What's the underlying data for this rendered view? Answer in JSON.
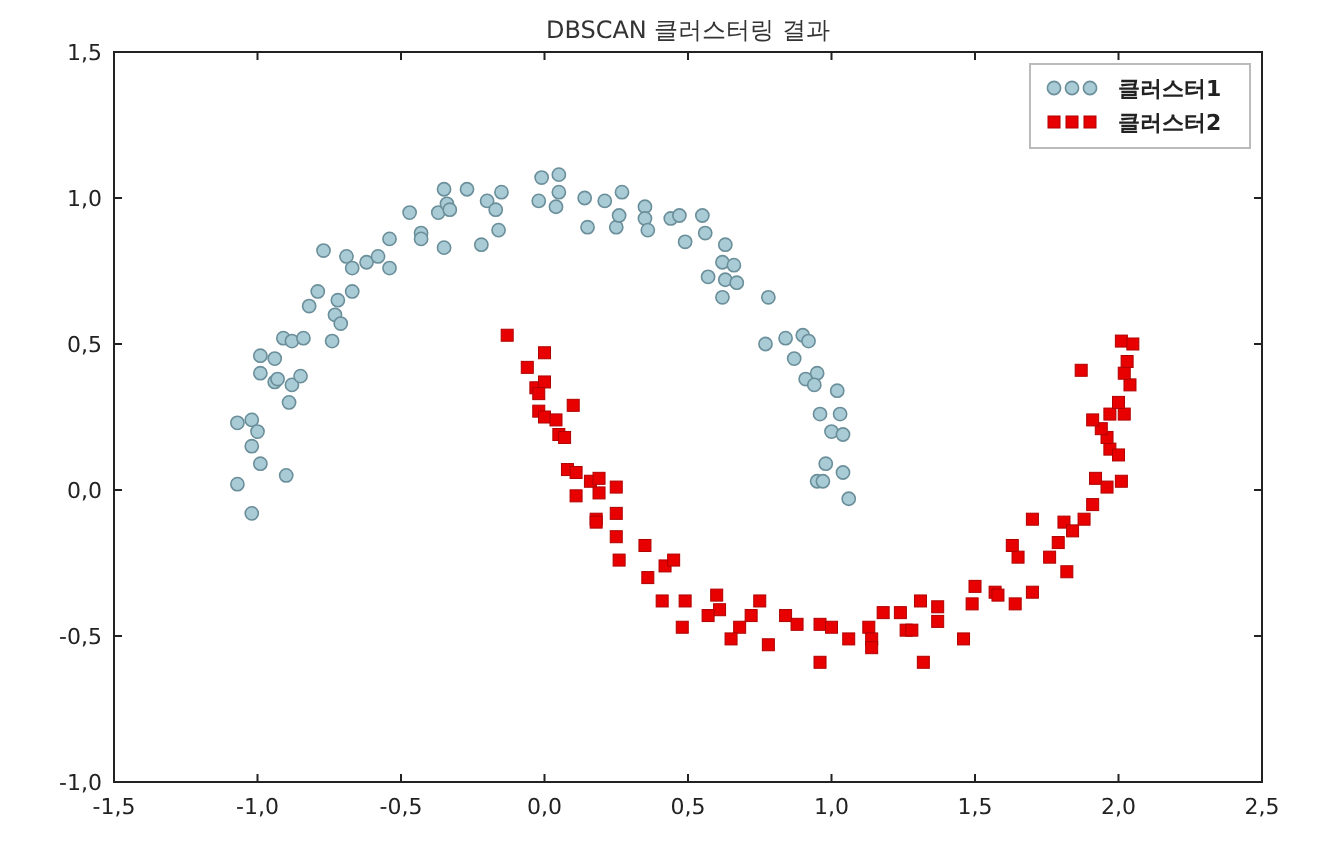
{
  "chart_data": {
    "type": "scatter",
    "title": "DBSCAN 클러스터링 결과",
    "xlim": [
      -1.5,
      2.5
    ],
    "ylim": [
      -1.0,
      1.5
    ],
    "xticks": [
      {
        "value": -1.5,
        "label": "-1,5"
      },
      {
        "value": -1.0,
        "label": "-1,0"
      },
      {
        "value": -0.5,
        "label": "-0,5"
      },
      {
        "value": 0.0,
        "label": "0,0"
      },
      {
        "value": 0.5,
        "label": "0,5"
      },
      {
        "value": 1.0,
        "label": "1,0"
      },
      {
        "value": 1.5,
        "label": "1,5"
      },
      {
        "value": 2.0,
        "label": "2,0"
      },
      {
        "value": 2.5,
        "label": "2,5"
      }
    ],
    "yticks": [
      {
        "value": -1.0,
        "label": "-1,0"
      },
      {
        "value": -0.5,
        "label": "-0,5"
      },
      {
        "value": 0.0,
        "label": "0,0"
      },
      {
        "value": 0.5,
        "label": "0,5"
      },
      {
        "value": 1.0,
        "label": "1,0"
      },
      {
        "value": 1.5,
        "label": "1,5"
      }
    ],
    "grid": false,
    "legend": "top right",
    "series": [
      {
        "name": "클러스터1",
        "color": "#a8cbd6",
        "marker": "circle",
        "x": [
          -1.07,
          -1.02,
          -1.0,
          -1.02,
          -0.99,
          -1.07,
          -0.9,
          -1.02,
          -0.99,
          -0.94,
          -0.99,
          -0.94,
          -0.93,
          -0.88,
          -0.85,
          -0.89,
          -0.91,
          -0.88,
          -0.84,
          -0.74,
          -0.82,
          -0.79,
          -0.72,
          -0.73,
          -0.71,
          -0.67,
          -0.77,
          -0.69,
          -0.67,
          -0.62,
          -0.58,
          -0.54,
          -0.54,
          -0.47,
          -0.43,
          -0.43,
          -0.35,
          -0.37,
          -0.35,
          -0.34,
          -0.33,
          -0.27,
          -0.2,
          -0.17,
          -0.15,
          -0.16,
          -0.22,
          -0.01,
          0.05,
          -0.02,
          0.05,
          0.04,
          0.14,
          0.15,
          0.21,
          0.27,
          0.25,
          0.26,
          0.35,
          0.35,
          0.36,
          0.44,
          0.47,
          0.55,
          0.56,
          0.49,
          0.63,
          0.62,
          0.66,
          0.57,
          0.63,
          0.67,
          0.62,
          0.78,
          0.77,
          0.84,
          0.9,
          0.92,
          0.87,
          0.91,
          0.95,
          0.94,
          1.02,
          0.96,
          1.03,
          1.0,
          1.04,
          0.98,
          1.04,
          0.95,
          0.97,
          1.06
        ],
        "values": [
          0.23,
          0.24,
          0.2,
          0.15,
          0.09,
          0.02,
          0.05,
          -0.08,
          0.46,
          0.45,
          0.4,
          0.37,
          0.38,
          0.36,
          0.39,
          0.3,
          0.52,
          0.51,
          0.52,
          0.51,
          0.63,
          0.68,
          0.65,
          0.6,
          0.57,
          0.68,
          0.82,
          0.8,
          0.76,
          0.78,
          0.8,
          0.76,
          0.86,
          0.95,
          0.88,
          0.86,
          0.83,
          0.95,
          1.03,
          0.98,
          0.96,
          1.03,
          0.99,
          0.96,
          1.02,
          0.89,
          0.84,
          1.07,
          1.08,
          0.99,
          1.02,
          0.97,
          1.0,
          0.9,
          0.99,
          1.02,
          0.9,
          0.94,
          0.97,
          0.93,
          0.89,
          0.93,
          0.94,
          0.94,
          0.88,
          0.85,
          0.84,
          0.78,
          0.77,
          0.73,
          0.72,
          0.71,
          0.66,
          0.66,
          0.5,
          0.52,
          0.53,
          0.51,
          0.45,
          0.38,
          0.4,
          0.36,
          0.34,
          0.26,
          0.26,
          0.2,
          0.19,
          0.09,
          0.06,
          0.03,
          0.03,
          -0.03
        ]
      },
      {
        "name": "클러스터2",
        "color": "#e80000",
        "marker": "square",
        "x": [
          -0.13,
          0.0,
          -0.06,
          -0.03,
          0.0,
          -0.02,
          -0.02,
          0.0,
          0.04,
          0.1,
          0.05,
          0.07,
          0.08,
          0.11,
          0.16,
          0.19,
          0.25,
          0.11,
          0.19,
          0.18,
          0.18,
          0.25,
          0.25,
          0.26,
          0.35,
          0.42,
          0.45,
          0.36,
          0.41,
          0.49,
          0.48,
          0.6,
          0.61,
          0.57,
          0.75,
          0.72,
          0.68,
          0.65,
          0.78,
          0.84,
          0.88,
          0.96,
          1.0,
          0.96,
          1.06,
          1.13,
          1.14,
          1.14,
          1.18,
          1.24,
          1.26,
          1.28,
          1.31,
          1.37,
          1.37,
          1.32,
          1.46,
          1.49,
          1.5,
          1.57,
          1.58,
          1.64,
          1.7,
          1.63,
          1.65,
          1.7,
          1.76,
          1.82,
          1.79,
          1.81,
          1.84,
          1.88,
          1.91,
          1.92,
          1.96,
          2.01,
          1.97,
          2.0,
          1.96,
          1.94,
          1.91,
          1.97,
          2.02,
          2.0,
          2.04,
          2.02,
          2.03,
          2.01,
          2.05,
          1.87
        ],
        "values": [
          0.53,
          0.47,
          0.42,
          0.35,
          0.37,
          0.33,
          0.27,
          0.25,
          0.24,
          0.29,
          0.19,
          0.18,
          0.07,
          0.06,
          0.03,
          0.04,
          0.01,
          -0.02,
          -0.01,
          -0.1,
          -0.11,
          -0.08,
          -0.16,
          -0.24,
          -0.19,
          -0.26,
          -0.24,
          -0.3,
          -0.38,
          -0.38,
          -0.47,
          -0.36,
          -0.41,
          -0.43,
          -0.38,
          -0.43,
          -0.47,
          -0.51,
          -0.53,
          -0.43,
          -0.46,
          -0.46,
          -0.47,
          -0.59,
          -0.51,
          -0.47,
          -0.51,
          -0.54,
          -0.42,
          -0.42,
          -0.48,
          -0.48,
          -0.38,
          -0.4,
          -0.45,
          -0.59,
          -0.51,
          -0.39,
          -0.33,
          -0.35,
          -0.36,
          -0.39,
          -0.35,
          -0.19,
          -0.23,
          -0.1,
          -0.23,
          -0.28,
          -0.18,
          -0.11,
          -0.14,
          -0.1,
          -0.05,
          0.04,
          0.01,
          0.03,
          0.14,
          0.12,
          0.18,
          0.21,
          0.24,
          0.26,
          0.26,
          0.3,
          0.36,
          0.4,
          0.44,
          0.51,
          0.5,
          0.41
        ]
      }
    ]
  }
}
